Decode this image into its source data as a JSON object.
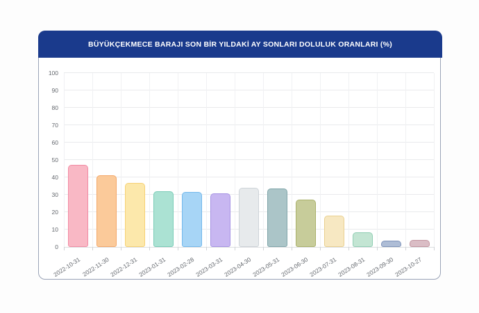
{
  "page": {
    "background": "#fdfdfd"
  },
  "card": {
    "background": "#ffffff",
    "border_color": "#99a2b6"
  },
  "header": {
    "title": "BÜYÜKÇEKMECE BARAJI SON BİR YILDAKİ AY SONLARI DOLULUK ORANLARI (%)",
    "background": "#1a3a8c",
    "text_color": "#ffffff"
  },
  "axis": {
    "label_color": "#63676d",
    "hgrid_color": "#e9eaec",
    "vgrid_color": "#f0f1f3",
    "baseline_color": "#dcdee0",
    "tick_color": "#cfd2d6"
  },
  "chart_data": {
    "type": "bar",
    "title": "BÜYÜKÇEKMECE BARAJI SON BİR YILDAKİ AY SONLARI DOLULUK ORANLARI (%)",
    "xlabel": "",
    "ylabel": "",
    "ylim": [
      0,
      100
    ],
    "yticks": [
      0,
      10,
      20,
      30,
      40,
      50,
      60,
      70,
      80,
      90,
      100
    ],
    "grid": true,
    "legend": false,
    "categories": [
      "2022-10-31",
      "2022-11-30",
      "2022-12-31",
      "2023-01-31",
      "2023-02-28",
      "2023-03-31",
      "2023-04-30",
      "2023-05-31",
      "2023-06-30",
      "2023-07-31",
      "2023-08-31",
      "2023-09-30",
      "2023-10-27"
    ],
    "values": [
      47.3,
      41.1,
      36.8,
      32.0,
      31.7,
      30.7,
      34.0,
      33.5,
      27.1,
      18.0,
      8.4,
      3.8,
      4.2
    ],
    "points": [
      {
        "date": "2022-10-31",
        "value": 47.3,
        "fill": "#f9b8c5",
        "border": "#f28ba4"
      },
      {
        "date": "2022-11-30",
        "value": 41.1,
        "fill": "#fbca9a",
        "border": "#f4a869"
      },
      {
        "date": "2022-12-31",
        "value": 36.8,
        "fill": "#fce8ab",
        "border": "#f6d173"
      },
      {
        "date": "2023-01-31",
        "value": 32.0,
        "fill": "#abe2d3",
        "border": "#79ccb7"
      },
      {
        "date": "2023-02-28",
        "value": 31.7,
        "fill": "#a7d5f6",
        "border": "#72b8ec"
      },
      {
        "date": "2023-03-31",
        "value": 30.7,
        "fill": "#c8b7f1",
        "border": "#a693e3"
      },
      {
        "date": "2023-04-30",
        "value": 34.0,
        "fill": "#e7eaec",
        "border": "#cdd3d8"
      },
      {
        "date": "2023-05-31",
        "value": 33.5,
        "fill": "#abc5c8",
        "border": "#7fa5a9"
      },
      {
        "date": "2023-06-30",
        "value": 27.1,
        "fill": "#c7cc9a",
        "border": "#a9b069"
      },
      {
        "date": "2023-07-31",
        "value": 18.0,
        "fill": "#f7e8c2",
        "border": "#e9d08f"
      },
      {
        "date": "2023-08-31",
        "value": 8.4,
        "fill": "#c3e5d3",
        "border": "#90ceb3"
      },
      {
        "date": "2023-09-30",
        "value": 3.8,
        "fill": "#aebdd6",
        "border": "#7d92b9"
      },
      {
        "date": "2023-10-27",
        "value": 4.2,
        "fill": "#dabdc5",
        "border": "#c2949f"
      }
    ]
  }
}
